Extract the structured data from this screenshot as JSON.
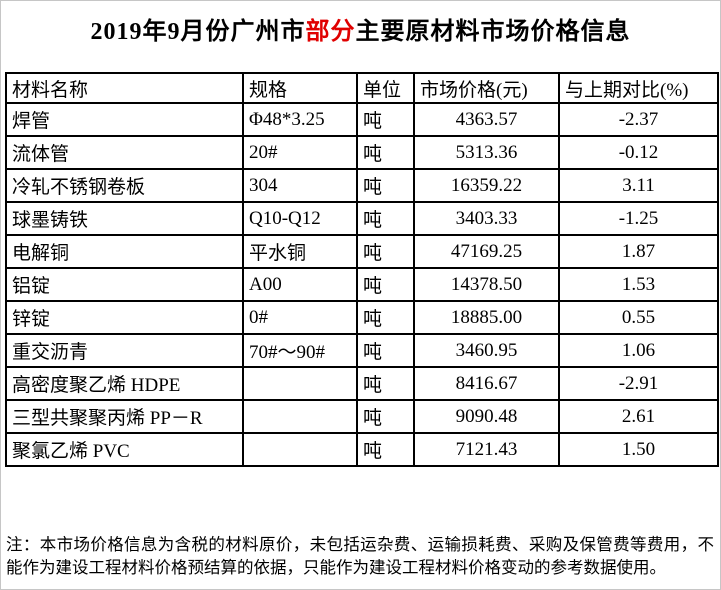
{
  "title": {
    "prefix": "2019年9月份广州市",
    "highlight": "部分",
    "suffix": "主要原材料市场价格信息"
  },
  "colors": {
    "title_highlight_red": "#e00000",
    "table_border": "#000000",
    "text": "#000000",
    "background": "#ffffff"
  },
  "table": {
    "headers": [
      "材料名称",
      "规格",
      "单位",
      "市场价格(元)",
      "与上期对比(%)"
    ],
    "rows": [
      [
        "焊管",
        "Φ48*3.25",
        "吨",
        "4363.57",
        "-2.37"
      ],
      [
        "流体管",
        "20#",
        "吨",
        "5313.36",
        "-0.12"
      ],
      [
        "冷轧不锈钢卷板",
        "304",
        "吨",
        "16359.22",
        "3.11"
      ],
      [
        "球墨铸铁",
        "Q10-Q12",
        "吨",
        "3403.33",
        "-1.25"
      ],
      [
        "电解铜",
        "平水铜",
        "吨",
        "47169.25",
        "1.87"
      ],
      [
        "铝锭",
        "A00",
        "吨",
        "14378.50",
        "1.53"
      ],
      [
        "锌锭",
        "0#",
        "吨",
        "18885.00",
        "0.55"
      ],
      [
        "重交沥青",
        "70#～90#",
        "吨",
        "3460.95",
        "1.06"
      ],
      [
        "高密度聚乙烯 HDPE",
        "",
        "吨",
        "8416.67",
        "-2.91"
      ],
      [
        "三型共聚聚丙烯 PP－R",
        "",
        "吨",
        "9090.48",
        "2.61"
      ],
      [
        "聚氯乙烯 PVC",
        "",
        "吨",
        "7121.43",
        "1.50"
      ]
    ]
  },
  "note": "注：本市场价格信息为含税的材料原价，未包括运杂费、运输损耗费、采购及保管费等费用，不能作为建设工程材料价格预结算的依据，只能作为建设工程材料价格变动的参考数据使用。"
}
